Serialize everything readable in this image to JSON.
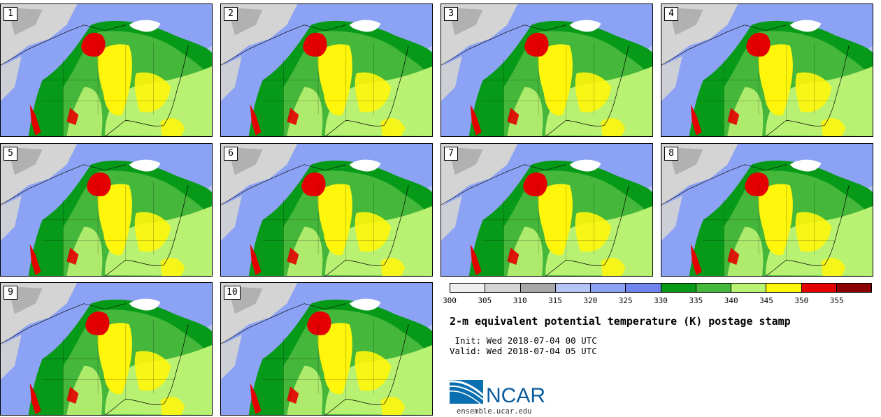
{
  "title": "2-m equivalent potential temperature (K) postage stamp",
  "init_line": " Init: Wed 2018-07-04 00 UTC",
  "valid_line": "Valid: Wed 2018-07-04 05 UTC",
  "org_name": "NCAR",
  "url": "ensemble.ucar.edu",
  "members": [
    "1",
    "2",
    "3",
    "4",
    "5",
    "6",
    "7",
    "8",
    "9",
    "10"
  ],
  "colorbar": {
    "ticks": [
      "300",
      "305",
      "310",
      "315",
      "320",
      "325",
      "330",
      "335",
      "340",
      "345",
      "350",
      "355"
    ],
    "colors": [
      "#eeeeee",
      "#d4d4d4",
      "#a8a8a8",
      "#b4c4f4",
      "#8ca2f4",
      "#6f84ec",
      "#079a19",
      "#45b73a",
      "#b9f172",
      "#fff60b",
      "#e40000",
      "#8b0000"
    ]
  },
  "map_colors": {
    "ocean_light": "#b4c4f4",
    "ocean_mid": "#8ca2f4",
    "land_gray": "#d4d4d4",
    "land_dark": "#a8a8a8",
    "green_dark": "#079a19",
    "green_mid": "#45b73a",
    "green_light": "#b9f172",
    "yellow": "#fff60b",
    "red": "#e40000",
    "lake": "#ffffff"
  }
}
